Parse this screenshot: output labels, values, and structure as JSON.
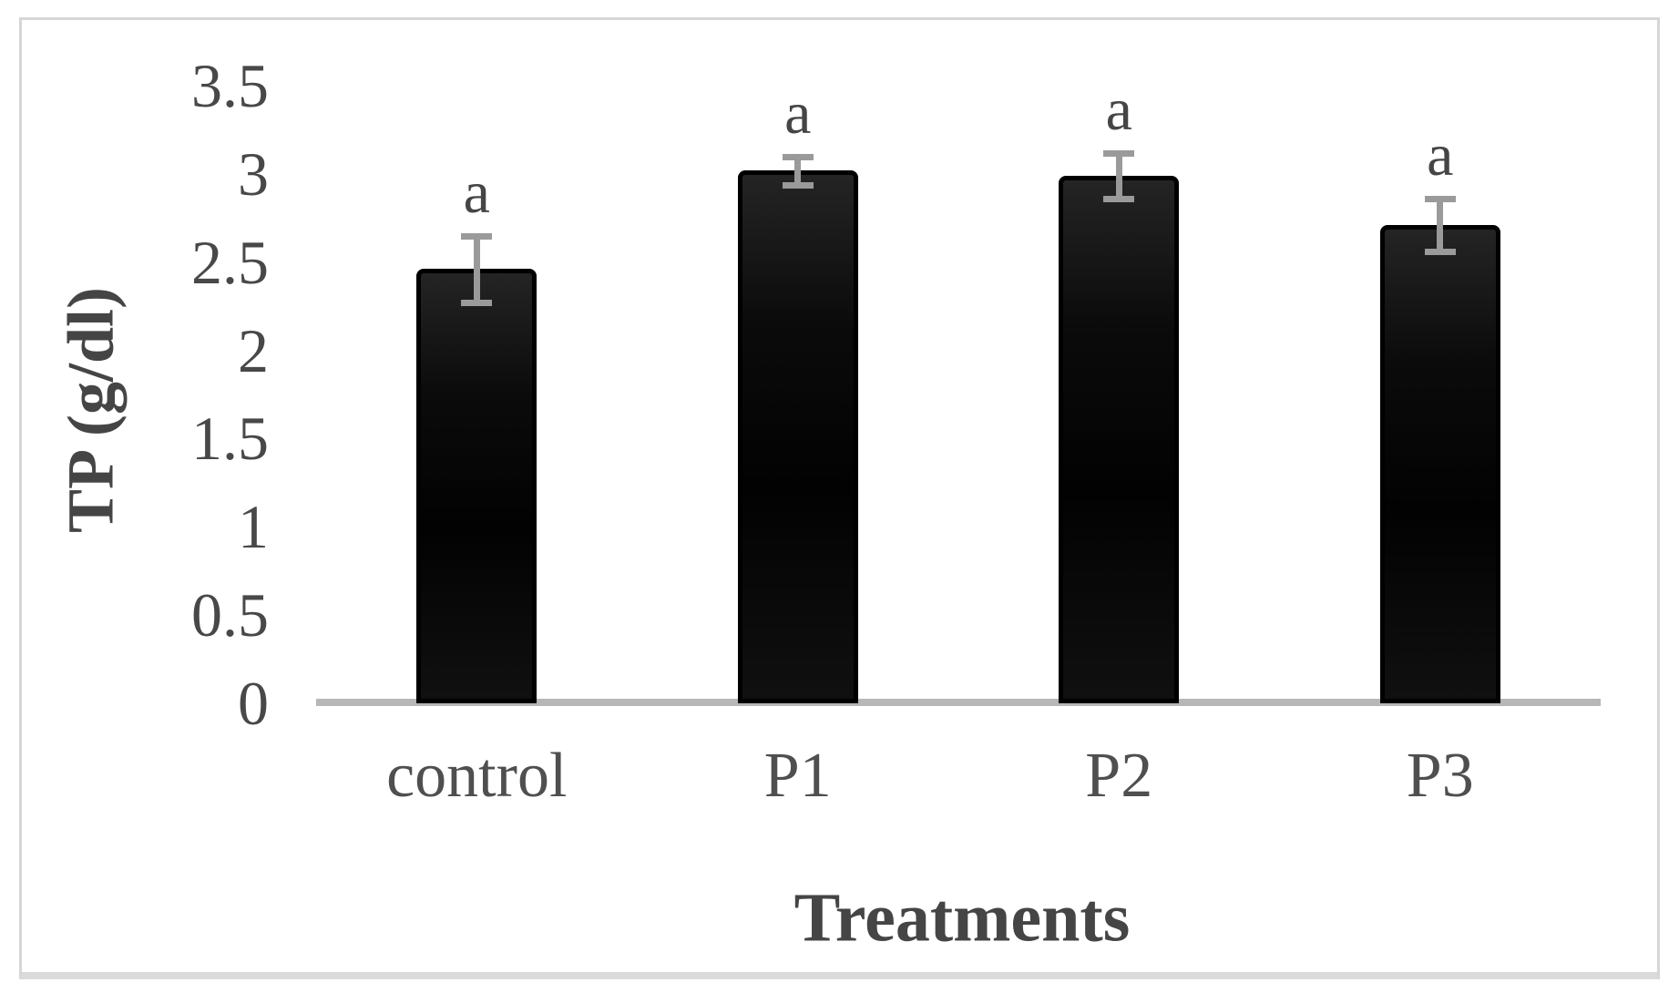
{
  "figure": {
    "background_color": "#ffffff",
    "border_color": "#d6d6d6"
  },
  "chart_data": {
    "type": "bar",
    "title": "",
    "xlabel": "Treatments",
    "ylabel": "TP (g/dl)",
    "categories": [
      "control",
      "P1",
      "P2",
      "P3"
    ],
    "values": [
      2.46,
      3.02,
      2.99,
      2.71
    ],
    "error_bars": [
      0.19,
      0.08,
      0.13,
      0.15
    ],
    "bar_labels": [
      "a",
      "a",
      "a",
      "a"
    ],
    "ylim": [
      0,
      3.5
    ],
    "ytick_step": 0.5,
    "ytick_labels": [
      "0",
      "0.5",
      "1",
      "1.5",
      "2",
      "2.5",
      "3",
      "3.5"
    ],
    "grid": false,
    "legend_position": "none",
    "bar_color": "#0a0a0a",
    "error_bar_color": "#9a9a9a",
    "axis_line_color": "#b7b7b7",
    "text_color": "#4a4a4a"
  }
}
